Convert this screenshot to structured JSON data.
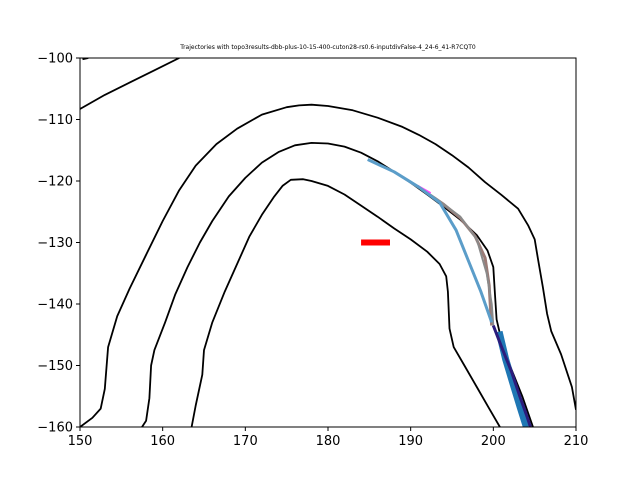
{
  "chart_data": {
    "type": "line",
    "title": "Trajectories with topo3results-dbb-plus-10-15-400-cuton28-rs0.6-inputdivFalse-4_24-6_41-R7CQT0",
    "xlabel": "",
    "ylabel": "",
    "xlim": [
      150,
      210
    ],
    "ylim": [
      -160,
      -100
    ],
    "x_ticks": [
      150,
      160,
      170,
      180,
      190,
      200,
      210
    ],
    "y_ticks": [
      -160,
      -150,
      -140,
      -130,
      -120,
      -110,
      -100
    ],
    "grid": false,
    "legend": "none",
    "contours": [
      {
        "color": "#000000",
        "points": [
          [
            150.3,
            -100.2
          ],
          [
            151,
            -100
          ]
        ]
      },
      {
        "color": "#000000",
        "points": [
          [
            150,
            -108.3
          ],
          [
            153,
            -106
          ],
          [
            156,
            -104
          ],
          [
            159,
            -102
          ],
          [
            162,
            -100
          ]
        ]
      },
      {
        "color": "#000000",
        "points": [
          [
            150,
            -160
          ],
          [
            151.5,
            -158.5
          ],
          [
            152.5,
            -157
          ],
          [
            153,
            -153.8
          ],
          [
            153.4,
            -147
          ],
          [
            154.5,
            -142
          ],
          [
            156,
            -137.5
          ],
          [
            158,
            -132
          ],
          [
            160,
            -126.5
          ],
          [
            162,
            -121.5
          ],
          [
            164,
            -117.5
          ],
          [
            166.5,
            -114
          ],
          [
            169,
            -111.5
          ],
          [
            172,
            -109.2
          ],
          [
            175,
            -108
          ],
          [
            176.5,
            -107.7
          ],
          [
            178,
            -107.6
          ],
          [
            180,
            -107.8
          ],
          [
            183,
            -108.5
          ],
          [
            186,
            -109.7
          ],
          [
            189,
            -111.2
          ],
          [
            191,
            -112.5
          ],
          [
            193,
            -114
          ],
          [
            195,
            -115.8
          ],
          [
            197,
            -117.8
          ],
          [
            199,
            -120.2
          ],
          [
            201,
            -122.3
          ],
          [
            203,
            -124.5
          ],
          [
            204.2,
            -127.2
          ],
          [
            205,
            -129.5
          ],
          [
            205.4,
            -132.7
          ],
          [
            206,
            -137.3
          ],
          [
            206.5,
            -141.6
          ],
          [
            207,
            -144.4
          ],
          [
            208.2,
            -148.2
          ],
          [
            209.5,
            -153.5
          ],
          [
            210,
            -157.2
          ]
        ]
      },
      {
        "color": "#000000",
        "points": [
          [
            157.5,
            -160
          ],
          [
            158,
            -159
          ],
          [
            158.4,
            -155.3
          ],
          [
            158.6,
            -150
          ],
          [
            159,
            -147.5
          ],
          [
            160.3,
            -143
          ],
          [
            161.5,
            -138.5
          ],
          [
            163,
            -134
          ],
          [
            164.5,
            -130
          ],
          [
            166,
            -126.5
          ],
          [
            168,
            -122.5
          ],
          [
            170,
            -119.5
          ],
          [
            172,
            -117
          ],
          [
            174,
            -115.3
          ],
          [
            176,
            -114.2
          ],
          [
            178,
            -113.8
          ],
          [
            180,
            -113.9
          ],
          [
            182,
            -114.4
          ],
          [
            184,
            -115.4
          ],
          [
            186,
            -116.8
          ],
          [
            188,
            -118.5
          ],
          [
            190,
            -120.3
          ],
          [
            192,
            -122.2
          ],
          [
            194,
            -124.2
          ],
          [
            196,
            -126.3
          ],
          [
            198,
            -128.8
          ],
          [
            199.3,
            -131.3
          ],
          [
            200,
            -134
          ],
          [
            200.2,
            -138.5
          ],
          [
            200.4,
            -142.5
          ],
          [
            201,
            -146
          ],
          [
            202,
            -150
          ],
          [
            203.5,
            -155
          ],
          [
            204.8,
            -160
          ]
        ]
      },
      {
        "color": "#000000",
        "points": [
          [
            163.5,
            -160
          ],
          [
            164,
            -156.5
          ],
          [
            164.8,
            -151.5
          ],
          [
            165,
            -147.5
          ],
          [
            166,
            -143
          ],
          [
            167.5,
            -138
          ],
          [
            169,
            -133.5
          ],
          [
            170.5,
            -129
          ],
          [
            172,
            -125.5
          ],
          [
            173.5,
            -122.5
          ],
          [
            174.5,
            -120.8
          ],
          [
            175.5,
            -119.8
          ],
          [
            177,
            -119.7
          ],
          [
            178,
            -120
          ],
          [
            180,
            -120.8
          ],
          [
            182,
            -122.2
          ],
          [
            184,
            -124
          ],
          [
            186,
            -125.8
          ],
          [
            188,
            -127.7
          ],
          [
            190,
            -129.5
          ],
          [
            192,
            -131.5
          ],
          [
            193.5,
            -133.5
          ],
          [
            194.3,
            -135.5
          ],
          [
            194.5,
            -138
          ],
          [
            194.6,
            -141
          ],
          [
            194.7,
            -144
          ],
          [
            195.2,
            -147
          ],
          [
            196.5,
            -150
          ],
          [
            198,
            -153.5
          ],
          [
            199.5,
            -157
          ],
          [
            200.8,
            -160
          ]
        ]
      }
    ],
    "series": [
      {
        "color": "#1f77b4",
        "width": 7,
        "points": [
          [
            200.7,
            -144.5
          ],
          [
            201.5,
            -149
          ],
          [
            202.5,
            -153.5
          ],
          [
            203.3,
            -157
          ],
          [
            204,
            -160
          ]
        ]
      },
      {
        "color": "#2b1c7c",
        "width": 3,
        "points": [
          [
            200,
            -143.5
          ],
          [
            201,
            -147
          ],
          [
            202.2,
            -151
          ],
          [
            203.2,
            -155
          ],
          [
            204,
            -158
          ],
          [
            204.5,
            -160
          ]
        ]
      },
      {
        "color": "#9b7b76",
        "width": 3,
        "points": [
          [
            191.5,
            -121.5
          ],
          [
            194,
            -123.8
          ],
          [
            196,
            -126
          ],
          [
            197.8,
            -129
          ],
          [
            199,
            -132.5
          ],
          [
            199.5,
            -137
          ],
          [
            199.7,
            -142
          ],
          [
            199.8,
            -143.5
          ]
        ]
      },
      {
        "color": "#8a8a8a",
        "width": 2,
        "points": [
          [
            190,
            -120.3
          ],
          [
            193,
            -122.8
          ],
          [
            196,
            -125.8
          ],
          [
            198,
            -129.5
          ],
          [
            199.2,
            -135
          ],
          [
            199.8,
            -140
          ],
          [
            200,
            -143.5
          ]
        ]
      },
      {
        "color": "#ff44ff",
        "width": 2.5,
        "points": [
          [
            190.8,
            -120.8
          ],
          [
            192.4,
            -122
          ]
        ]
      },
      {
        "color": "#5b9dc9",
        "width": 3,
        "points": [
          [
            184.8,
            -116.5
          ],
          [
            188,
            -118.5
          ],
          [
            191,
            -121
          ],
          [
            193.5,
            -123.5
          ],
          [
            195.5,
            -128
          ],
          [
            197,
            -133
          ],
          [
            198.5,
            -138
          ],
          [
            199.8,
            -143
          ]
        ]
      }
    ],
    "marker": {
      "color": "#ff0000",
      "x": [
        184,
        187.5
      ],
      "y": -130
    }
  }
}
